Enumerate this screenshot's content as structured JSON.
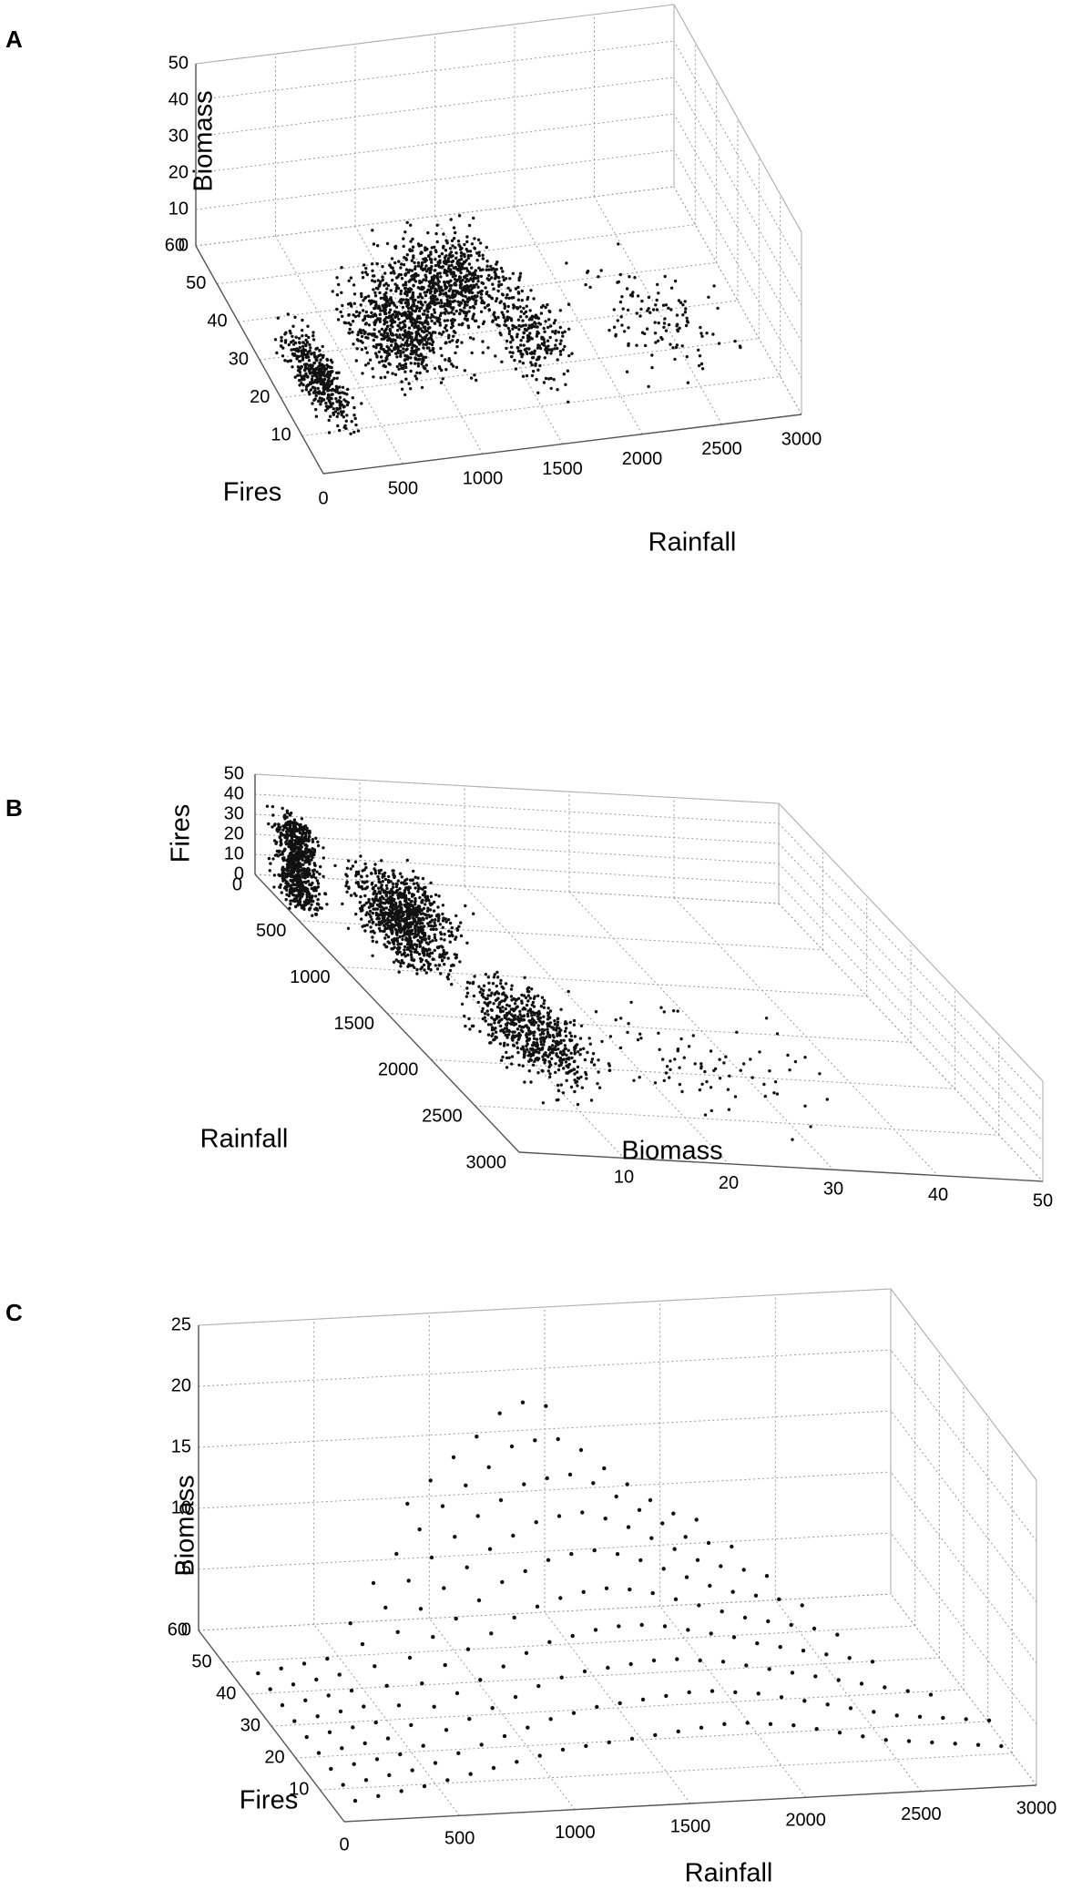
{
  "figure": {
    "panel_letters": [
      "A",
      "B",
      "C"
    ]
  },
  "chart_data": [
    {
      "panel": "A",
      "type": "scatter",
      "dimensions": "3d",
      "axes": {
        "x": {
          "label": "Rainfall",
          "ticks": [
            "0",
            "500",
            "1000",
            "1500",
            "2000",
            "2500",
            "3000"
          ],
          "range": [
            0,
            3000
          ]
        },
        "y": {
          "label": "Fires",
          "ticks": [
            "10",
            "20",
            "30",
            "40",
            "50",
            "60"
          ],
          "range": [
            0,
            60
          ]
        },
        "z": {
          "label": "Biomass",
          "ticks": [
            "0",
            "10",
            "20",
            "30",
            "40",
            "50"
          ],
          "range": [
            0,
            50
          ]
        }
      },
      "grid": true,
      "marker_color": "#111111",
      "clusters": [
        {
          "rain": [
            80,
            450
          ],
          "fires": [
            5,
            40
          ],
          "biomass": [
            0,
            3
          ],
          "n": 420
        },
        {
          "rain": [
            400,
            1300
          ],
          "fires": [
            10,
            45
          ],
          "biomass": [
            2,
            12
          ],
          "n": 700
        },
        {
          "rain": [
            800,
            1700
          ],
          "fires": [
            20,
            50
          ],
          "biomass": [
            3,
            16
          ],
          "n": 650
        },
        {
          "rain": [
            1300,
            1900
          ],
          "fires": [
            8,
            40
          ],
          "biomass": [
            0,
            10
          ],
          "n": 260
        },
        {
          "rain": [
            1800,
            3000
          ],
          "fires": [
            5,
            45
          ],
          "biomass": [
            0,
            8
          ],
          "n": 120
        }
      ]
    },
    {
      "panel": "B",
      "type": "scatter",
      "dimensions": "3d",
      "axes": {
        "x": {
          "label": "Biomass",
          "ticks": [
            "10",
            "20",
            "30",
            "40",
            "50"
          ],
          "range": [
            0,
            50
          ]
        },
        "y": {
          "label": "Rainfall",
          "ticks": [
            "0",
            "500",
            "1000",
            "1500",
            "2000",
            "2500",
            "3000"
          ],
          "range": [
            0,
            3000
          ]
        },
        "z": {
          "label": "Fires",
          "ticks": [
            "0",
            "10",
            "20",
            "30",
            "40",
            "50"
          ],
          "range": [
            0,
            50
          ]
        }
      },
      "grid": true,
      "marker_color": "#111111",
      "clusters": [
        {
          "biomass": [
            0,
            3
          ],
          "rain": [
            0,
            600
          ],
          "fires": [
            0,
            40
          ],
          "n": 700
        },
        {
          "biomass": [
            2,
            12
          ],
          "rain": [
            300,
            1400
          ],
          "fires": [
            5,
            35
          ],
          "n": 900
        },
        {
          "biomass": [
            5,
            16
          ],
          "rain": [
            1200,
            2600
          ],
          "fires": [
            0,
            25
          ],
          "n": 600
        },
        {
          "biomass": [
            10,
            40
          ],
          "rain": [
            1000,
            3000
          ],
          "fires": [
            0,
            15
          ],
          "n": 90
        }
      ]
    },
    {
      "panel": "C",
      "type": "scatter",
      "dimensions": "3d",
      "axes": {
        "x": {
          "label": "Rainfall",
          "ticks": [
            "0",
            "500",
            "1000",
            "1500",
            "2000",
            "2500",
            "3000"
          ],
          "range": [
            0,
            3000
          ]
        },
        "y": {
          "label": "Fires",
          "ticks": [
            "10",
            "20",
            "30",
            "40",
            "50",
            "60"
          ],
          "range": [
            0,
            60
          ]
        },
        "z": {
          "label": "Biomass",
          "ticks": [
            "0",
            "5",
            "10",
            "15",
            "20",
            "25"
          ],
          "range": [
            0,
            25
          ]
        }
      },
      "grid": true,
      "marker_color": "#111111",
      "points": [
        [
          100,
          5,
          0.3
        ],
        [
          100,
          10,
          0.3
        ],
        [
          100,
          15,
          0.3
        ],
        [
          100,
          20,
          0.3
        ],
        [
          100,
          25,
          0.3
        ],
        [
          100,
          30,
          0.3
        ],
        [
          100,
          35,
          0.3
        ],
        [
          100,
          40,
          0.3
        ],
        [
          100,
          45,
          0.3
        ],
        [
          200,
          5,
          0.6
        ],
        [
          200,
          10,
          0.6
        ],
        [
          200,
          15,
          0.6
        ],
        [
          200,
          20,
          0.6
        ],
        [
          200,
          25,
          0.6
        ],
        [
          200,
          30,
          0.6
        ],
        [
          200,
          35,
          0.6
        ],
        [
          200,
          40,
          0.6
        ],
        [
          200,
          45,
          0.6
        ],
        [
          300,
          5,
          0.9
        ],
        [
          300,
          10,
          0.9
        ],
        [
          300,
          15,
          0.9
        ],
        [
          300,
          20,
          0.9
        ],
        [
          300,
          25,
          0.9
        ],
        [
          300,
          30,
          0.9
        ],
        [
          300,
          35,
          0.9
        ],
        [
          300,
          40,
          0.9
        ],
        [
          300,
          45,
          0.9
        ],
        [
          400,
          5,
          1.2
        ],
        [
          400,
          10,
          1.2
        ],
        [
          400,
          15,
          1.2
        ],
        [
          400,
          20,
          1.2
        ],
        [
          400,
          25,
          1.2
        ],
        [
          400,
          30,
          1.2
        ],
        [
          400,
          35,
          1.2
        ],
        [
          400,
          40,
          1.2
        ],
        [
          400,
          45,
          1.2
        ],
        [
          500,
          5,
          1.6
        ],
        [
          500,
          10,
          1.7
        ],
        [
          500,
          15,
          1.8
        ],
        [
          500,
          20,
          2.2
        ],
        [
          500,
          25,
          2.5
        ],
        [
          500,
          30,
          2.8
        ],
        [
          500,
          35,
          3.1
        ],
        [
          500,
          40,
          3.6
        ],
        [
          500,
          45,
          4.0
        ],
        [
          600,
          5,
          2.0
        ],
        [
          600,
          10,
          2.4
        ],
        [
          600,
          15,
          3.0
        ],
        [
          600,
          20,
          3.6
        ],
        [
          600,
          25,
          4.2
        ],
        [
          600,
          30,
          5.0
        ],
        [
          600,
          35,
          5.8
        ],
        [
          600,
          40,
          6.5
        ],
        [
          600,
          45,
          7.2
        ],
        [
          700,
          5,
          2.4
        ],
        [
          700,
          10,
          3.0
        ],
        [
          700,
          15,
          3.8
        ],
        [
          700,
          20,
          4.6
        ],
        [
          700,
          25,
          5.6
        ],
        [
          700,
          30,
          6.6
        ],
        [
          700,
          35,
          7.6
        ],
        [
          700,
          40,
          8.6
        ],
        [
          700,
          45,
          9.5
        ],
        [
          800,
          5,
          2.8
        ],
        [
          800,
          10,
          3.6
        ],
        [
          800,
          15,
          4.6
        ],
        [
          800,
          20,
          5.6
        ],
        [
          800,
          25,
          6.8
        ],
        [
          800,
          30,
          8.0
        ],
        [
          800,
          35,
          9.2
        ],
        [
          800,
          40,
          10.4
        ],
        [
          800,
          45,
          11.4
        ],
        [
          800,
          50,
          12.2
        ],
        [
          900,
          5,
          3.2
        ],
        [
          900,
          10,
          4.2
        ],
        [
          900,
          15,
          5.4
        ],
        [
          900,
          20,
          6.6
        ],
        [
          900,
          25,
          8.0
        ],
        [
          900,
          30,
          9.4
        ],
        [
          900,
          35,
          10.8
        ],
        [
          900,
          40,
          12.0
        ],
        [
          900,
          45,
          13.2
        ],
        [
          900,
          50,
          14.0
        ],
        [
          1000,
          5,
          3.6
        ],
        [
          1000,
          10,
          4.8
        ],
        [
          1000,
          15,
          6.2
        ],
        [
          1000,
          20,
          7.6
        ],
        [
          1000,
          25,
          9.2
        ],
        [
          1000,
          30,
          10.8
        ],
        [
          1000,
          35,
          12.2
        ],
        [
          1000,
          40,
          13.6
        ],
        [
          1000,
          45,
          14.8
        ],
        [
          1000,
          50,
          15.8
        ],
        [
          1100,
          5,
          3.8
        ],
        [
          1100,
          10,
          5.2
        ],
        [
          1100,
          15,
          6.8
        ],
        [
          1100,
          20,
          8.4
        ],
        [
          1100,
          25,
          10.0
        ],
        [
          1100,
          30,
          11.6
        ],
        [
          1100,
          35,
          13.2
        ],
        [
          1100,
          40,
          14.8
        ],
        [
          1100,
          45,
          16.2
        ],
        [
          1100,
          50,
          17.4
        ],
        [
          1200,
          5,
          4.0
        ],
        [
          1200,
          10,
          5.6
        ],
        [
          1200,
          15,
          7.2
        ],
        [
          1200,
          20,
          8.8
        ],
        [
          1200,
          25,
          10.6
        ],
        [
          1200,
          30,
          12.4
        ],
        [
          1200,
          35,
          14.2
        ],
        [
          1200,
          40,
          16.0
        ],
        [
          1200,
          45,
          17.8
        ],
        [
          1200,
          50,
          19.2
        ],
        [
          1300,
          5,
          4.2
        ],
        [
          1300,
          10,
          5.8
        ],
        [
          1300,
          15,
          7.4
        ],
        [
          1300,
          20,
          9.2
        ],
        [
          1300,
          25,
          11.0
        ],
        [
          1300,
          30,
          12.8
        ],
        [
          1300,
          35,
          14.6
        ],
        [
          1300,
          40,
          16.4
        ],
        [
          1300,
          45,
          18.2
        ],
        [
          1300,
          50,
          20.0
        ],
        [
          1400,
          5,
          4.4
        ],
        [
          1400,
          10,
          6.0
        ],
        [
          1400,
          15,
          7.6
        ],
        [
          1400,
          20,
          9.4
        ],
        [
          1400,
          25,
          11.2
        ],
        [
          1400,
          30,
          13.0
        ],
        [
          1400,
          35,
          14.8
        ],
        [
          1400,
          40,
          16.6
        ],
        [
          1400,
          45,
          18.2
        ],
        [
          1400,
          50,
          19.6
        ],
        [
          1500,
          5,
          4.6
        ],
        [
          1500,
          10,
          6.2
        ],
        [
          1500,
          15,
          7.8
        ],
        [
          1500,
          20,
          9.4
        ],
        [
          1500,
          25,
          11.0
        ],
        [
          1500,
          30,
          12.6
        ],
        [
          1500,
          35,
          14.2
        ],
        [
          1500,
          40,
          15.8
        ],
        [
          1500,
          45,
          17.2
        ],
        [
          1600,
          5,
          4.8
        ],
        [
          1600,
          10,
          6.4
        ],
        [
          1600,
          15,
          7.8
        ],
        [
          1600,
          20,
          9.2
        ],
        [
          1600,
          25,
          10.6
        ],
        [
          1600,
          30,
          12.0
        ],
        [
          1600,
          35,
          13.4
        ],
        [
          1600,
          40,
          14.6
        ],
        [
          1600,
          45,
          15.6
        ],
        [
          1700,
          5,
          5.0
        ],
        [
          1700,
          10,
          6.4
        ],
        [
          1700,
          15,
          7.6
        ],
        [
          1700,
          20,
          8.8
        ],
        [
          1700,
          25,
          10.0
        ],
        [
          1700,
          30,
          11.2
        ],
        [
          1700,
          35,
          12.4
        ],
        [
          1700,
          40,
          13.4
        ],
        [
          1700,
          45,
          14.2
        ],
        [
          1800,
          5,
          5.0
        ],
        [
          1800,
          10,
          6.2
        ],
        [
          1800,
          15,
          7.4
        ],
        [
          1800,
          20,
          8.4
        ],
        [
          1800,
          25,
          9.4
        ],
        [
          1800,
          30,
          10.4
        ],
        [
          1800,
          35,
          11.4
        ],
        [
          1800,
          40,
          12.2
        ],
        [
          1800,
          45,
          12.8
        ],
        [
          1900,
          5,
          4.8
        ],
        [
          1900,
          10,
          6.0
        ],
        [
          1900,
          15,
          7.0
        ],
        [
          1900,
          20,
          8.0
        ],
        [
          1900,
          25,
          8.8
        ],
        [
          1900,
          30,
          9.6
        ],
        [
          1900,
          35,
          10.4
        ],
        [
          1900,
          40,
          11.0
        ],
        [
          1900,
          45,
          11.6
        ],
        [
          2000,
          5,
          4.6
        ],
        [
          2000,
          10,
          5.6
        ],
        [
          2000,
          15,
          6.6
        ],
        [
          2000,
          20,
          7.4
        ],
        [
          2000,
          25,
          8.2
        ],
        [
          2000,
          30,
          9.0
        ],
        [
          2000,
          35,
          9.8
        ],
        [
          2000,
          40,
          10.4
        ],
        [
          2000,
          45,
          11.0
        ],
        [
          2100,
          5,
          4.2
        ],
        [
          2100,
          10,
          5.2
        ],
        [
          2100,
          15,
          6.2
        ],
        [
          2100,
          20,
          7.0
        ],
        [
          2100,
          25,
          7.8
        ],
        [
          2100,
          30,
          8.6
        ],
        [
          2100,
          35,
          9.4
        ],
        [
          2100,
          40,
          10.0
        ],
        [
          2200,
          5,
          3.8
        ],
        [
          2200,
          10,
          4.8
        ],
        [
          2200,
          15,
          5.8
        ],
        [
          2200,
          20,
          6.6
        ],
        [
          2200,
          25,
          7.4
        ],
        [
          2200,
          30,
          8.2
        ],
        [
          2200,
          35,
          8.8
        ],
        [
          2300,
          5,
          3.4
        ],
        [
          2300,
          10,
          4.4
        ],
        [
          2300,
          15,
          5.4
        ],
        [
          2300,
          20,
          6.2
        ],
        [
          2300,
          25,
          7.0
        ],
        [
          2300,
          30,
          7.6
        ],
        [
          2400,
          5,
          3.0
        ],
        [
          2400,
          10,
          4.0
        ],
        [
          2400,
          15,
          5.0
        ],
        [
          2400,
          20,
          5.8
        ],
        [
          2400,
          25,
          6.4
        ],
        [
          2500,
          5,
          2.8
        ],
        [
          2500,
          10,
          3.6
        ],
        [
          2500,
          15,
          4.6
        ],
        [
          2500,
          20,
          5.4
        ],
        [
          2600,
          5,
          2.6
        ],
        [
          2600,
          10,
          3.4
        ],
        [
          2600,
          15,
          4.2
        ],
        [
          2700,
          5,
          2.4
        ],
        [
          2700,
          10,
          3.2
        ],
        [
          2700,
          15,
          3.8
        ],
        [
          2800,
          5,
          2.2
        ],
        [
          2800,
          10,
          3.0
        ],
        [
          2900,
          5,
          2.0
        ],
        [
          2900,
          10,
          2.8
        ]
      ]
    }
  ]
}
